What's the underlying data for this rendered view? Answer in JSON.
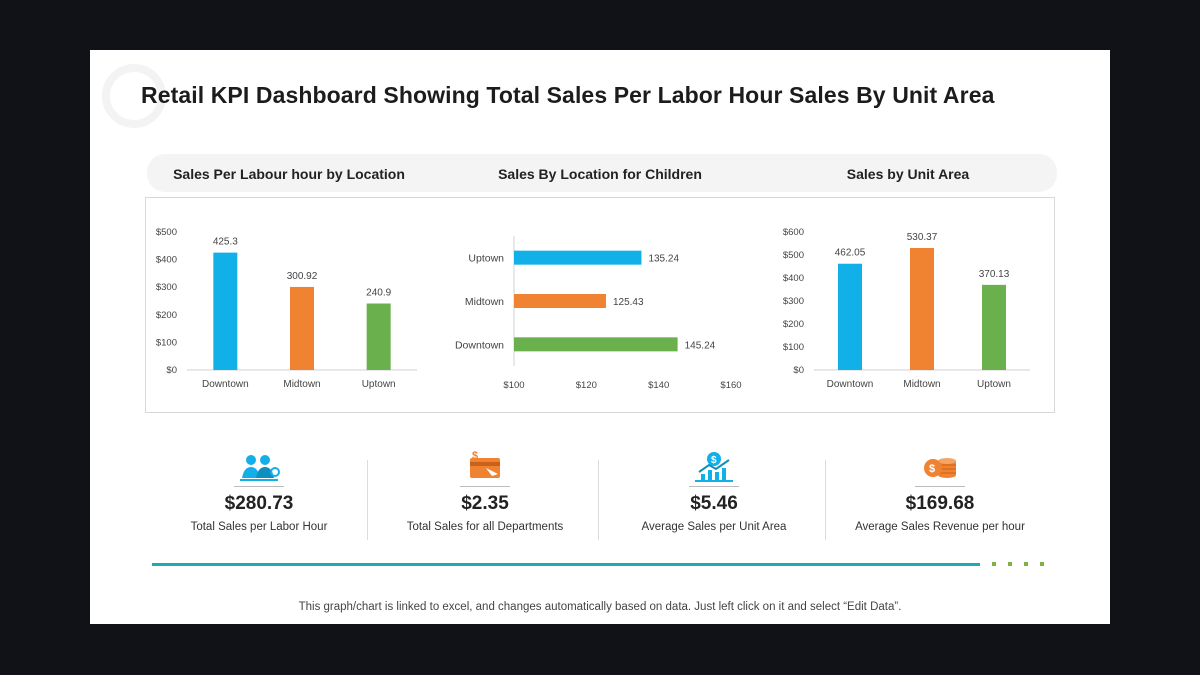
{
  "title": "Retail KPI Dashboard Showing Total Sales Per Labor Hour Sales By Unit Area",
  "colors": {
    "blue": "#12b0e8",
    "orange": "#f08331",
    "green": "#6ab04c",
    "teal": "#1fa9b3"
  },
  "chart_data": [
    {
      "type": "bar",
      "title": "Sales Per Labour hour by Location",
      "categories": [
        "Downtown",
        "Midtown",
        "Uptown"
      ],
      "values": [
        425.3,
        300.92,
        240.9
      ],
      "value_labels": [
        "425.3",
        "300.92",
        "240.9"
      ],
      "ylim": [
        0,
        500
      ],
      "yticks": [
        "$0",
        "$100",
        "$200",
        "$300",
        "$400",
        "$500"
      ],
      "grid": false
    },
    {
      "type": "bar",
      "orientation": "horizontal",
      "title": "Sales By Location for Children",
      "categories": [
        "Uptown",
        "Midtown",
        "Downtown"
      ],
      "values": [
        135.24,
        125.43,
        145.24
      ],
      "value_labels": [
        "135.24",
        "125.43",
        "145.24"
      ],
      "xlim": [
        100,
        160
      ],
      "xticks": [
        "$100",
        "$120",
        "$140",
        "$160"
      ],
      "grid": false
    },
    {
      "type": "bar",
      "title": "Sales by Unit Area",
      "categories": [
        "Downtown",
        "Midtown",
        "Uptown"
      ],
      "values": [
        462.05,
        530.37,
        370.13
      ],
      "value_labels": [
        "462.05",
        "530.37",
        "370.13"
      ],
      "ylim": [
        0,
        600
      ],
      "yticks": [
        "$0",
        "$100",
        "$200",
        "$300",
        "$400",
        "$500",
        "$600"
      ],
      "grid": false
    }
  ],
  "kpis": [
    {
      "value": "$280.73",
      "label": "Total Sales per Labor Hour",
      "icon": "team-icon"
    },
    {
      "value": "$2.35",
      "label": "Total Sales for all Departments",
      "icon": "dollar-card-icon"
    },
    {
      "value": "$5.46",
      "label": "Average Sales per Unit Area",
      "icon": "growth-chart-icon"
    },
    {
      "value": "$169.68",
      "label": "Average Sales Revenue per hour",
      "icon": "coin-stack-icon"
    }
  ],
  "footer": "This graph/chart is linked to excel, and changes automatically  based on data. Just left click  on it and select “Edit Data”."
}
